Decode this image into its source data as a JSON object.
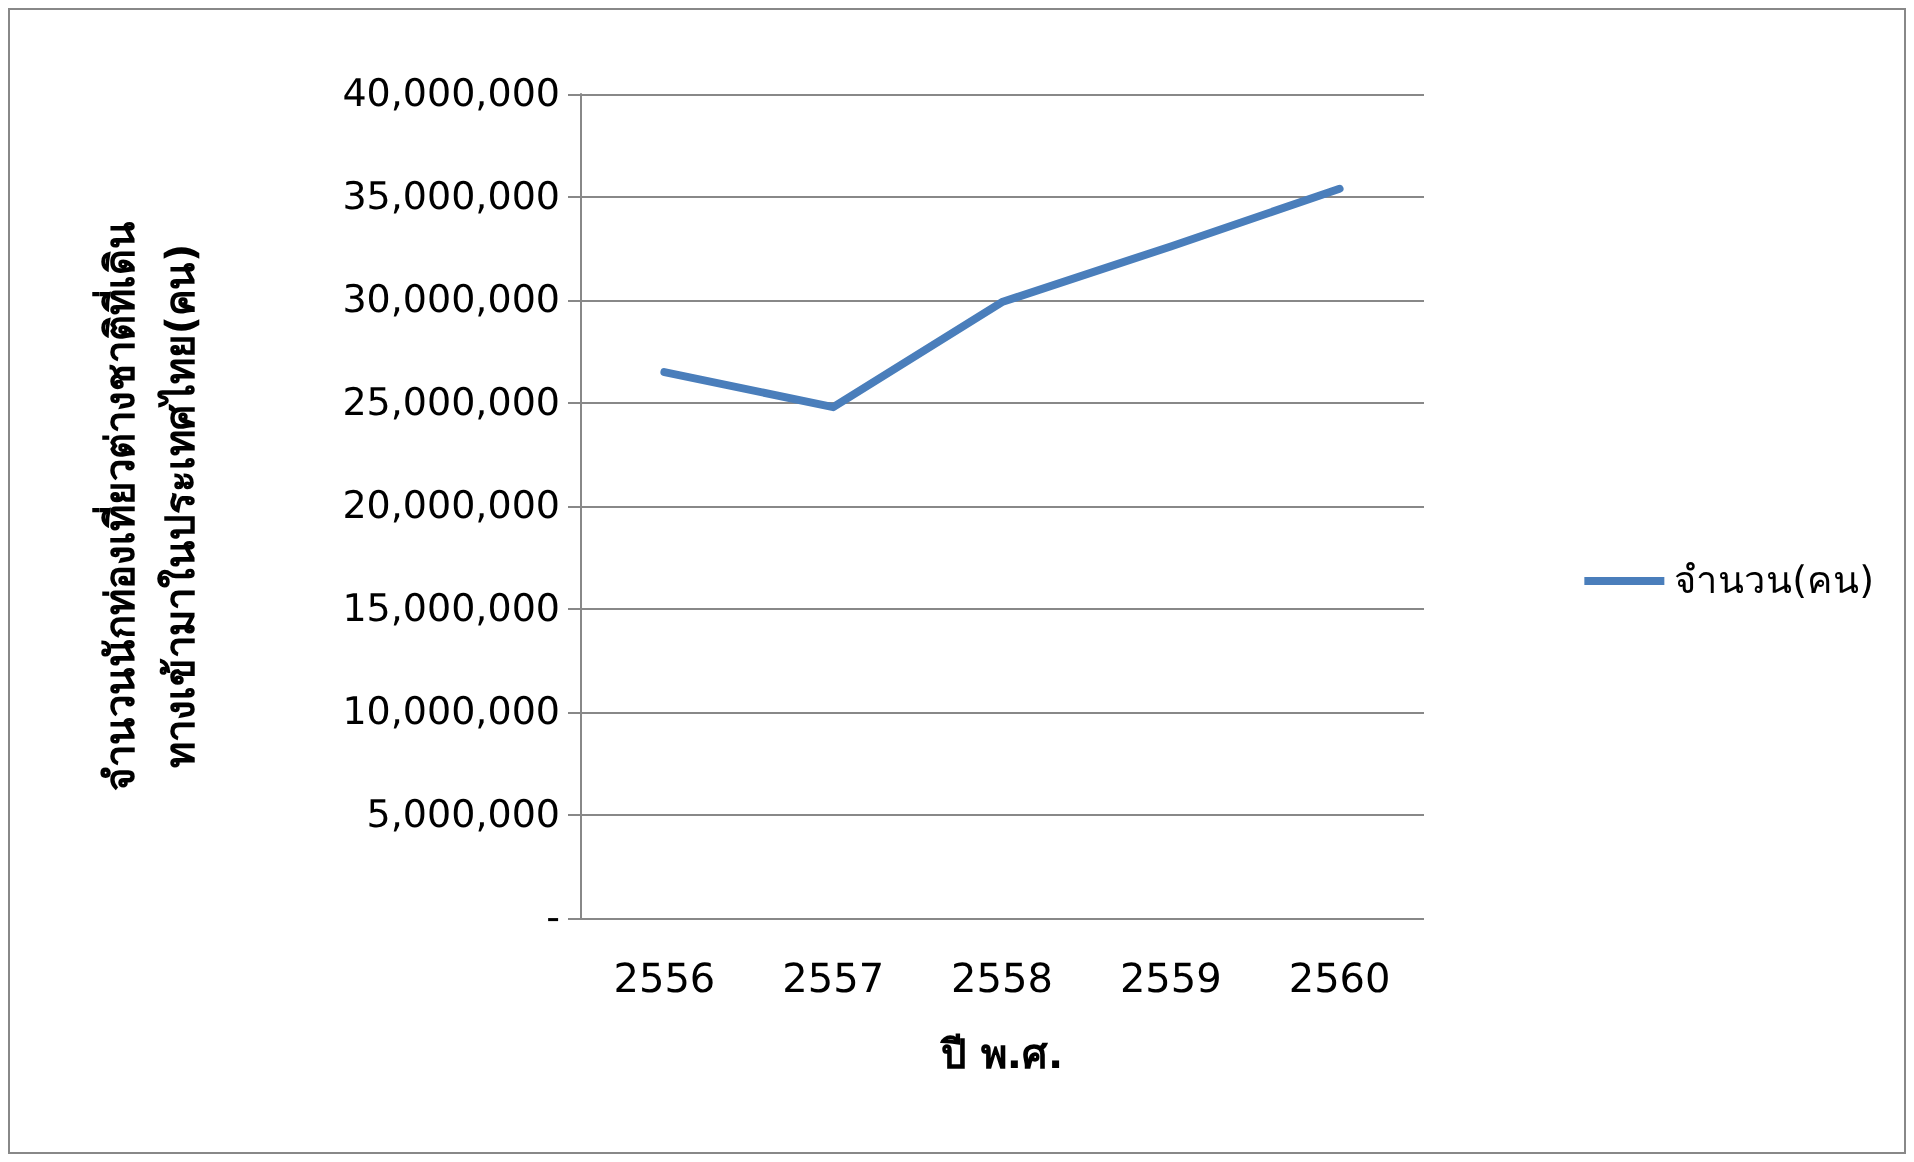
{
  "chart_data": {
    "type": "line",
    "xlabel": "ปี พ.ศ.",
    "ylabel": "จำนวนนักท่องเที่ยวต่างชาติที่เดิน\nทางเข้ามาในประเทศไทย(คน)",
    "categories": [
      "2556",
      "2557",
      "2558",
      "2559",
      "2560"
    ],
    "series": [
      {
        "name": "จำนวน(คน)",
        "color": "#4a7ebb",
        "values": [
          26500000,
          24800000,
          29900000,
          32600000,
          35400000
        ]
      }
    ],
    "ylim": [
      0,
      40000000
    ],
    "yticks": [
      {
        "value": 0,
        "label": "-"
      },
      {
        "value": 5000000,
        "label": "5,000,000"
      },
      {
        "value": 10000000,
        "label": "10,000,000"
      },
      {
        "value": 15000000,
        "label": "15,000,000"
      },
      {
        "value": 20000000,
        "label": "20,000,000"
      },
      {
        "value": 25000000,
        "label": "25,000,000"
      },
      {
        "value": 30000000,
        "label": "30,000,000"
      },
      {
        "value": 35000000,
        "label": "35,000,000"
      },
      {
        "value": 40000000,
        "label": "40,000,000"
      }
    ],
    "grid": "y",
    "legend": "right",
    "marker": "none",
    "line_style": "solid"
  }
}
